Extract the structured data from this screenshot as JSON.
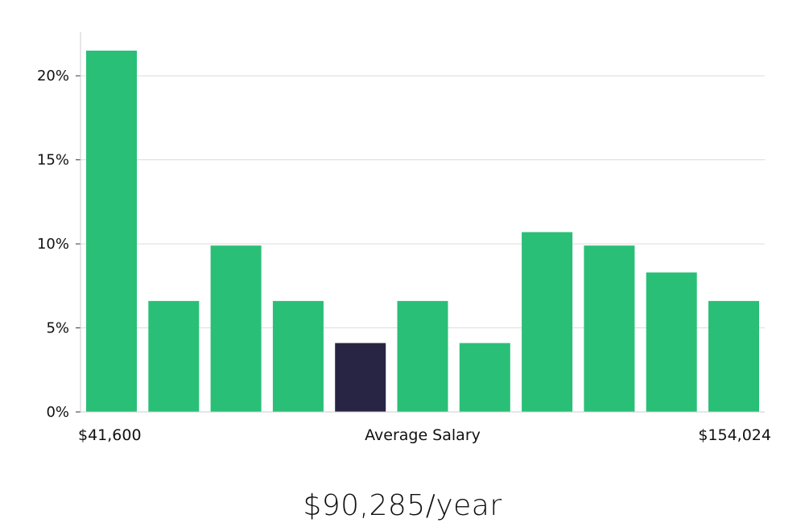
{
  "chart_data": {
    "type": "bar",
    "values": [
      21.5,
      6.6,
      9.9,
      6.6,
      4.1,
      6.6,
      4.1,
      10.7,
      9.9,
      8.3,
      6.6
    ],
    "highlight_index": 4,
    "ylim": [
      0,
      22.5
    ],
    "yticks": [
      0,
      5,
      10,
      15,
      20
    ],
    "ytick_labels": [
      "0%",
      "5%",
      "10%",
      "15%",
      "20%"
    ],
    "x_min_label": "$41,600",
    "x_center_label": "Average Salary",
    "x_max_label": "$154,024",
    "grid": true,
    "colors": {
      "bar": "#2abf77",
      "highlight": "#272444",
      "grid": "#dcdcdc",
      "axis": "#cccccc"
    }
  },
  "summary": {
    "average_salary": "$90,285/year"
  }
}
